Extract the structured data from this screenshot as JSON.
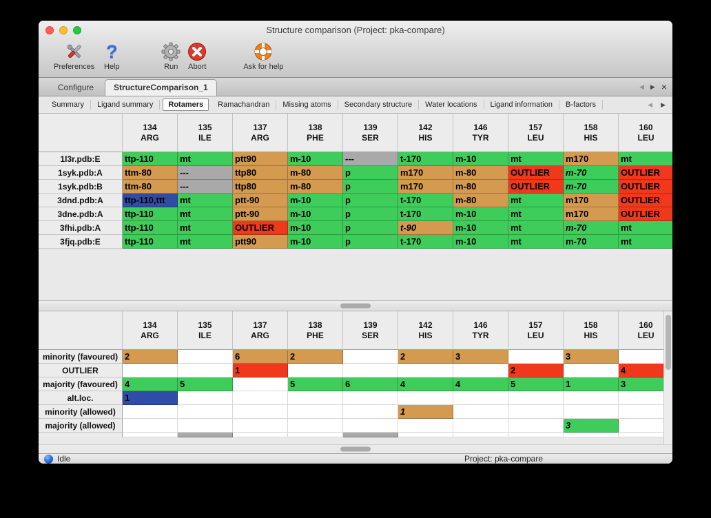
{
  "window": {
    "title": "Structure comparison (Project: pka-compare)"
  },
  "icons": {
    "left_arrow": "◀",
    "right_arrow": "▶",
    "close_tab": "×"
  },
  "toolbar": {
    "items": [
      {
        "label": "Preferences",
        "icon": "crossed-tools-icon"
      },
      {
        "label": "Help",
        "icon": "question-mark-icon"
      },
      {
        "label": "Run",
        "icon": "gear-icon"
      },
      {
        "label": "Abort",
        "icon": "abort-cross-icon"
      },
      {
        "label": "Ask for help",
        "icon": "lifebuoy-icon"
      }
    ]
  },
  "tabs": {
    "items": [
      {
        "label": "Configure",
        "active": false
      },
      {
        "label": "StructureComparison_1",
        "active": true
      }
    ]
  },
  "subtabs": {
    "items": [
      "Summary",
      "Ligand summary",
      "Rotamers",
      "Ramachandran",
      "Missing atoms",
      "Secondary structure",
      "Water locations",
      "Ligand information",
      "B-factors"
    ],
    "active": "Rotamers"
  },
  "columns": [
    [
      "134",
      "ARG"
    ],
    [
      "135",
      "ILE"
    ],
    [
      "137",
      "ARG"
    ],
    [
      "138",
      "PHE"
    ],
    [
      "139",
      "SER"
    ],
    [
      "142",
      "HIS"
    ],
    [
      "146",
      "TYR"
    ],
    [
      "157",
      "LEU"
    ],
    [
      "158",
      "HIS"
    ],
    [
      "160",
      "LEU"
    ]
  ],
  "upper_table": {
    "rows": [
      {
        "label": "1l3r.pdb:E",
        "cells": [
          [
            "ttp-110",
            "green"
          ],
          [
            "mt",
            "green"
          ],
          [
            "ptt90",
            "tan"
          ],
          [
            "m-10",
            "green"
          ],
          [
            "---",
            "gray"
          ],
          [
            "t-170",
            "green"
          ],
          [
            "m-10",
            "green"
          ],
          [
            "mt",
            "green"
          ],
          [
            "m170",
            "tan"
          ],
          [
            "mt",
            "green"
          ]
        ]
      },
      {
        "label": "1syk.pdb:A",
        "cells": [
          [
            "ttm-80",
            "tan"
          ],
          [
            "---",
            "gray"
          ],
          [
            "ttp80",
            "tan"
          ],
          [
            "m-80",
            "tan"
          ],
          [
            "p",
            "green"
          ],
          [
            "m170",
            "tan"
          ],
          [
            "m-80",
            "tan"
          ],
          [
            "OUTLIER",
            "red"
          ],
          [
            "m-70",
            "green",
            "i"
          ],
          [
            "OUTLIER",
            "red"
          ]
        ]
      },
      {
        "label": "1syk.pdb:B",
        "cells": [
          [
            "ttm-80",
            "tan"
          ],
          [
            "---",
            "gray"
          ],
          [
            "ttp80",
            "tan"
          ],
          [
            "m-80",
            "tan"
          ],
          [
            "p",
            "green"
          ],
          [
            "m170",
            "tan"
          ],
          [
            "m-80",
            "tan"
          ],
          [
            "OUTLIER",
            "red"
          ],
          [
            "m-70",
            "green",
            "i"
          ],
          [
            "OUTLIER",
            "red"
          ]
        ]
      },
      {
        "label": "3dnd.pdb:A",
        "cells": [
          [
            "ttp-110,ttt",
            "blue"
          ],
          [
            "mt",
            "green"
          ],
          [
            "ptt-90",
            "tan"
          ],
          [
            "m-10",
            "green"
          ],
          [
            "p",
            "green"
          ],
          [
            "t-170",
            "green"
          ],
          [
            "m-80",
            "tan"
          ],
          [
            "mt",
            "green"
          ],
          [
            "m170",
            "tan"
          ],
          [
            "OUTLIER",
            "red"
          ]
        ]
      },
      {
        "label": "3dne.pdb:A",
        "cells": [
          [
            "ttp-110",
            "green"
          ],
          [
            "mt",
            "green"
          ],
          [
            "ptt-90",
            "tan"
          ],
          [
            "m-10",
            "green"
          ],
          [
            "p",
            "green"
          ],
          [
            "t-170",
            "green"
          ],
          [
            "m-10",
            "green"
          ],
          [
            "mt",
            "green"
          ],
          [
            "m170",
            "tan"
          ],
          [
            "OUTLIER",
            "red"
          ]
        ]
      },
      {
        "label": "3fhi.pdb:A",
        "cells": [
          [
            "ttp-110",
            "green"
          ],
          [
            "mt",
            "green"
          ],
          [
            "OUTLIER",
            "red"
          ],
          [
            "m-10",
            "green"
          ],
          [
            "p",
            "green"
          ],
          [
            "t-90",
            "tan",
            "i"
          ],
          [
            "m-10",
            "green"
          ],
          [
            "mt",
            "green"
          ],
          [
            "m-70",
            "green",
            "i"
          ],
          [
            "mt",
            "green"
          ]
        ]
      },
      {
        "label": "3fjq.pdb:E",
        "cells": [
          [
            "ttp-110",
            "green"
          ],
          [
            "mt",
            "green"
          ],
          [
            "ptt90",
            "tan"
          ],
          [
            "m-10",
            "green"
          ],
          [
            "p",
            "green"
          ],
          [
            "t-170",
            "green"
          ],
          [
            "m-10",
            "green"
          ],
          [
            "mt",
            "green"
          ],
          [
            "m-70",
            "green"
          ],
          [
            "mt",
            "green"
          ]
        ]
      }
    ]
  },
  "lower_table": {
    "rows": [
      {
        "label": "minority (favoured)",
        "cells": [
          [
            "2",
            "tan"
          ],
          [
            "",
            ""
          ],
          [
            "6",
            "tan"
          ],
          [
            "2",
            "tan"
          ],
          [
            "",
            ""
          ],
          [
            "2",
            "tan"
          ],
          [
            "3",
            "tan"
          ],
          [
            "",
            ""
          ],
          [
            "3",
            "tan"
          ],
          [
            "",
            ""
          ]
        ]
      },
      {
        "label": "OUTLIER",
        "cells": [
          [
            "",
            ""
          ],
          [
            "",
            ""
          ],
          [
            "1",
            "red"
          ],
          [
            "",
            ""
          ],
          [
            "",
            ""
          ],
          [
            "",
            ""
          ],
          [
            "",
            ""
          ],
          [
            "2",
            "red"
          ],
          [
            "",
            ""
          ],
          [
            "4",
            "red"
          ]
        ]
      },
      {
        "label": "majority (favoured)",
        "cells": [
          [
            "4",
            "green"
          ],
          [
            "5",
            "green"
          ],
          [
            "",
            ""
          ],
          [
            "5",
            "green"
          ],
          [
            "6",
            "green"
          ],
          [
            "4",
            "green"
          ],
          [
            "4",
            "green"
          ],
          [
            "5",
            "green"
          ],
          [
            "1",
            "green"
          ],
          [
            "3",
            "green"
          ]
        ]
      },
      {
        "label": "alt.loc.",
        "cells": [
          [
            "1",
            "blue"
          ],
          [
            "",
            ""
          ],
          [
            "",
            ""
          ],
          [
            "",
            ""
          ],
          [
            "",
            ""
          ],
          [
            "",
            ""
          ],
          [
            "",
            ""
          ],
          [
            "",
            ""
          ],
          [
            "",
            ""
          ],
          [
            "",
            ""
          ]
        ]
      },
      {
        "label": "minority (allowed)",
        "cells": [
          [
            "",
            ""
          ],
          [
            "",
            ""
          ],
          [
            "",
            ""
          ],
          [
            "",
            ""
          ],
          [
            "",
            ""
          ],
          [
            "1",
            "tan",
            "i"
          ],
          [
            "",
            ""
          ],
          [
            "",
            ""
          ],
          [
            "",
            ""
          ],
          [
            "",
            ""
          ]
        ]
      },
      {
        "label": "majority (allowed)",
        "cells": [
          [
            "",
            ""
          ],
          [
            "",
            ""
          ],
          [
            "",
            ""
          ],
          [
            "",
            ""
          ],
          [
            "",
            ""
          ],
          [
            "",
            ""
          ],
          [
            "",
            ""
          ],
          [
            "",
            ""
          ],
          [
            "3",
            "green",
            "i"
          ],
          [
            "",
            ""
          ]
        ]
      }
    ],
    "partial_gray_columns": [
      1,
      4
    ]
  },
  "statusbar": {
    "status": "Idle",
    "project": "Project: pka-compare"
  },
  "colors": {
    "favoured_majority_green": "#3ecd5a",
    "minority_tan": "#d49a4f",
    "outlier_red": "#f0381d",
    "no_data_gray": "#a9a9a9",
    "alt_loc_blue": "#2f4da8",
    "traffic_red": "#ff5f57",
    "traffic_yellow": "#febc2e",
    "traffic_green": "#28c840"
  }
}
